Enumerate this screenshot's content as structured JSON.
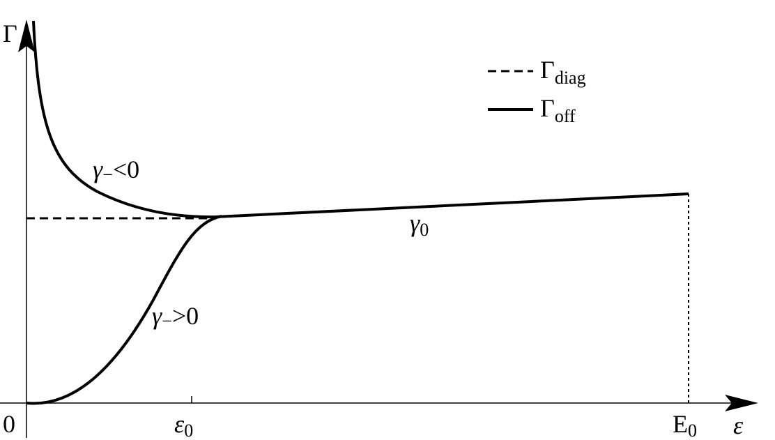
{
  "axes": {
    "y_label": "Γ",
    "x_label": "ε",
    "origin": "0",
    "x_marks": [
      {
        "symbol": "ε",
        "sub": "0"
      },
      {
        "symbol": "E",
        "sub": "0"
      }
    ]
  },
  "legend": [
    {
      "symbol": "Γ",
      "sub": "diag"
    },
    {
      "symbol": "Γ",
      "sub": "off"
    }
  ],
  "annotations": [
    {
      "symbol": "γ",
      "sub": "−",
      "rest": "<0"
    },
    {
      "symbol": "γ",
      "sub": "−",
      "rest": ">0"
    },
    {
      "symbol": "γ",
      "sub": "0"
    }
  ]
}
